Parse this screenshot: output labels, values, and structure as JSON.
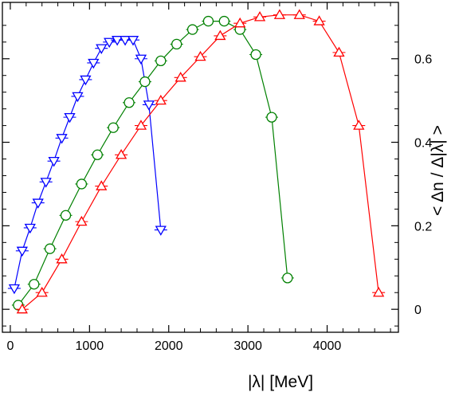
{
  "chart_data": {
    "type": "line",
    "xlabel": "|λ|  [MeV]",
    "ylabel": "< Δn / Δ|λ| >",
    "xlim": [
      -100,
      4900
    ],
    "ylim": [
      -0.055,
      0.735
    ],
    "xticks": [
      0,
      1000,
      2000,
      3000,
      4000
    ],
    "yticks": [
      0,
      0.2,
      0.4,
      0.6
    ],
    "xtick_labels": [
      "0",
      "1000",
      "2000",
      "3000",
      "4000"
    ],
    "ytick_labels": [
      "0",
      "0.2",
      "0.4",
      "0.6"
    ],
    "y_axis_side": "right",
    "grid": false,
    "legend": "none",
    "series": [
      {
        "color": "#0000ff",
        "marker": "triangle-down",
        "x": [
          50,
          150,
          250,
          350,
          450,
          550,
          650,
          750,
          850,
          950,
          1050,
          1150,
          1250,
          1350,
          1450,
          1550,
          1650,
          1750,
          1900
        ],
        "y": [
          0.05,
          0.14,
          0.195,
          0.255,
          0.305,
          0.355,
          0.41,
          0.46,
          0.51,
          0.55,
          0.59,
          0.625,
          0.64,
          0.645,
          0.645,
          0.645,
          0.6,
          0.49,
          0.19
        ]
      },
      {
        "color": "#008000",
        "marker": "circle",
        "x": [
          100,
          300,
          500,
          700,
          900,
          1100,
          1300,
          1500,
          1700,
          1900,
          2100,
          2300,
          2500,
          2700,
          2900,
          3100,
          3300,
          3500
        ],
        "y": [
          0.01,
          0.06,
          0.145,
          0.225,
          0.3,
          0.37,
          0.435,
          0.495,
          0.545,
          0.595,
          0.635,
          0.67,
          0.69,
          0.69,
          0.67,
          0.61,
          0.46,
          0.075
        ]
      },
      {
        "color": "#ff0000",
        "marker": "triangle-up",
        "x": [
          150,
          400,
          650,
          900,
          1150,
          1400,
          1650,
          1900,
          2150,
          2400,
          2650,
          2900,
          3150,
          3400,
          3650,
          3900,
          4150,
          4400,
          4650
        ],
        "y": [
          0.0,
          0.04,
          0.12,
          0.21,
          0.295,
          0.37,
          0.44,
          0.5,
          0.555,
          0.605,
          0.655,
          0.685,
          0.7,
          0.705,
          0.705,
          0.69,
          0.615,
          0.44,
          0.04
        ]
      }
    ]
  }
}
